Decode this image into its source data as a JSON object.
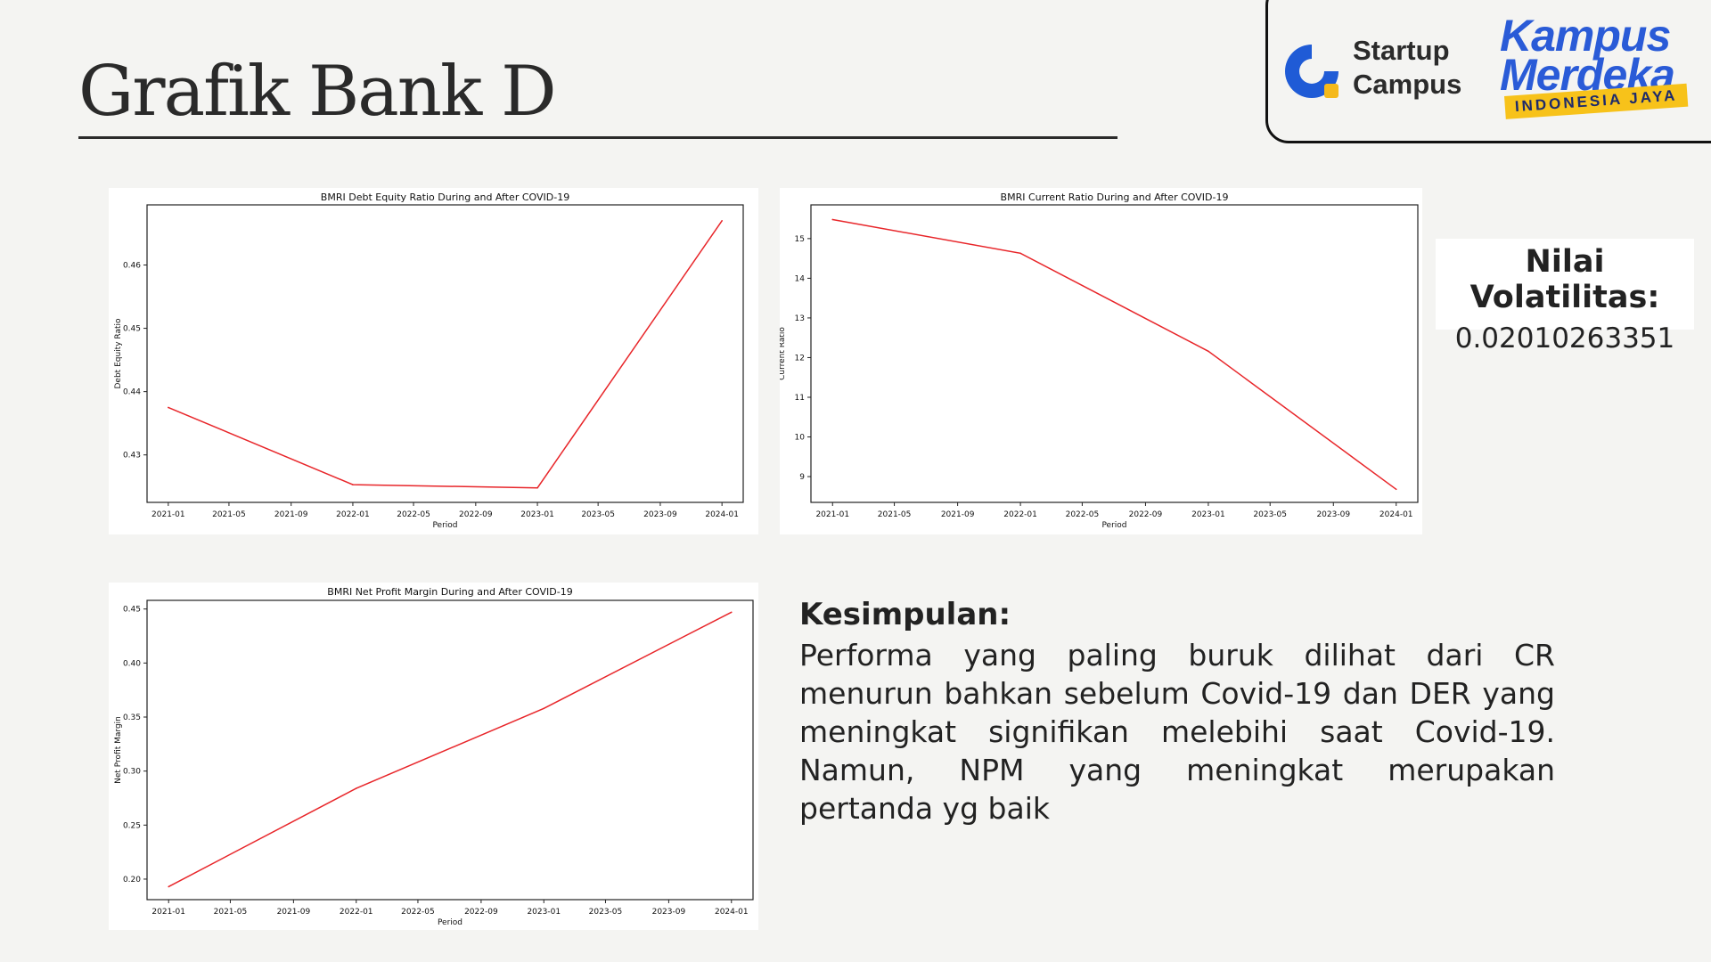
{
  "header": {
    "title": "Grafik Bank D"
  },
  "logos": {
    "startup_campus_line1": "Startup",
    "startup_campus_line2": "Campus",
    "kampus_line1": "Kampus",
    "kampus_line2": "Merdeka",
    "kampus_badge": "INDONESIA JAYA"
  },
  "volatility": {
    "label": "Nilai Volatilitas:",
    "value": "0.02010263351"
  },
  "conclusion": {
    "label": "Kesimpulan:",
    "text": "Performa yang paling buruk dilihat dari CR menurun bahkan sebelum Covid-19 dan DER yang meningkat signifikan melebihi saat Covid-19. Namun, NPM yang meningkat merupakan pertanda yg baik"
  },
  "colors": {
    "line": "#e8262a",
    "background": "#f4f4f2"
  },
  "chart_data": [
    {
      "id": "der",
      "type": "line",
      "title": "BMRI Debt Equity Ratio During and After COVID-19",
      "xlabel": "Period",
      "ylabel": "Debt Equity Ratio",
      "x_ticks": [
        "2021-01",
        "2021-05",
        "2021-09",
        "2022-01",
        "2022-05",
        "2022-09",
        "2023-01",
        "2023-05",
        "2023-09",
        "2024-01"
      ],
      "y_ticks": [
        0.43,
        0.44,
        0.45,
        0.46
      ],
      "xlim": [
        "2020-11-20",
        "2024-02-12"
      ],
      "ylim": [
        0.4225,
        0.4695
      ],
      "x": [
        "2021-01-01",
        "2022-01-01",
        "2023-01-01",
        "2024-01-01"
      ],
      "series": [
        {
          "values": [
            0.4375,
            0.4253,
            0.4248,
            0.467
          ]
        }
      ]
    },
    {
      "id": "cr",
      "type": "line",
      "title": "BMRI Current Ratio During and After COVID-19",
      "xlabel": "Period",
      "ylabel": "Current Ratio",
      "x_ticks": [
        "2021-01",
        "2021-05",
        "2021-09",
        "2022-01",
        "2022-05",
        "2022-09",
        "2023-01",
        "2023-05",
        "2023-09",
        "2024-01"
      ],
      "y_ticks": [
        9,
        10,
        11,
        12,
        13,
        14,
        15
      ],
      "xlim": [
        "2020-11-20",
        "2024-02-12"
      ],
      "ylim": [
        8.35,
        15.85
      ],
      "x": [
        "2021-01-01",
        "2022-01-01",
        "2023-01-01",
        "2024-01-01"
      ],
      "series": [
        {
          "values": [
            15.48,
            14.63,
            12.16,
            8.68
          ]
        }
      ]
    },
    {
      "id": "npm",
      "type": "line",
      "title": "BMRI Net Profit Margin During and After COVID-19",
      "xlabel": "Period",
      "ylabel": "Net Profit Margin",
      "x_ticks": [
        "2021-01",
        "2021-05",
        "2021-09",
        "2022-01",
        "2022-05",
        "2022-09",
        "2023-01",
        "2023-05",
        "2023-09",
        "2024-01"
      ],
      "y_ticks": [
        0.2,
        0.25,
        0.3,
        0.35,
        0.4,
        0.45
      ],
      "y_tick_labels": [
        "0.20",
        "0.25",
        "0.30",
        "0.35",
        "0.40",
        "0.45"
      ],
      "xlim": [
        "2020-11-20",
        "2024-02-12"
      ],
      "ylim": [
        0.181,
        0.458
      ],
      "x": [
        "2021-01-01",
        "2022-01-01",
        "2023-01-01",
        "2024-01-01"
      ],
      "series": [
        {
          "values": [
            0.193,
            0.284,
            0.358,
            0.447
          ]
        }
      ]
    }
  ]
}
